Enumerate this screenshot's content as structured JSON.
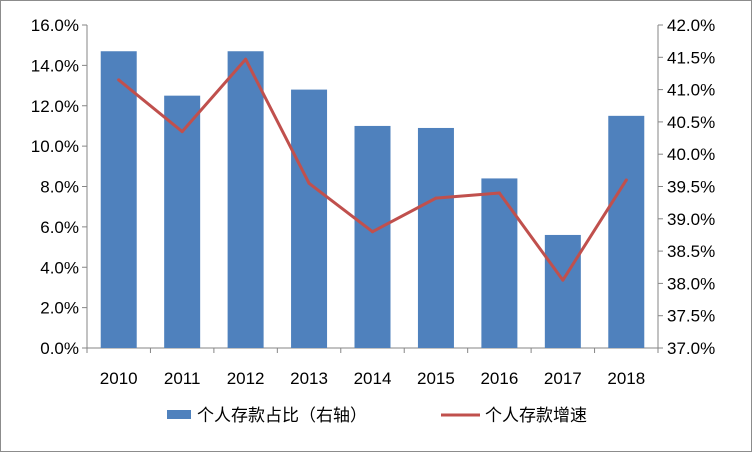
{
  "chart_data": {
    "type": "bar",
    "title": "",
    "categories": [
      "2010",
      "2011",
      "2012",
      "2013",
      "2014",
      "2015",
      "2016",
      "2017",
      "2018"
    ],
    "series": [
      {
        "name": "个人存款占比（右轴）",
        "type": "bar",
        "axis": "left",
        "color": "#4F81BD",
        "values": [
          14.7,
          12.5,
          14.7,
          12.8,
          11.0,
          10.9,
          8.4,
          5.6,
          11.5
        ]
      },
      {
        "name": "个人存款增速",
        "type": "line",
        "axis": "right",
        "color": "#C0504D",
        "values": [
          41.15,
          40.35,
          41.47,
          39.55,
          38.8,
          39.32,
          39.4,
          38.05,
          39.6
        ]
      }
    ],
    "left_axis": {
      "min": 0,
      "max": 16,
      "step": 2,
      "ticks": [
        "0.0%",
        "2.0%",
        "4.0%",
        "6.0%",
        "8.0%",
        "10.0%",
        "12.0%",
        "14.0%",
        "16.0%"
      ]
    },
    "right_axis": {
      "min": 37,
      "max": 42,
      "step": 0.5,
      "ticks": [
        "37.0%",
        "37.5%",
        "38.0%",
        "38.5%",
        "39.0%",
        "39.5%",
        "40.0%",
        "40.5%",
        "41.0%",
        "41.5%",
        "42.0%"
      ]
    },
    "grid": false,
    "legend": "bottom"
  }
}
